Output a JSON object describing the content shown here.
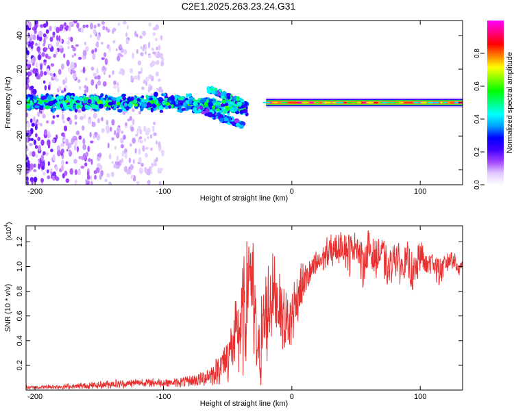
{
  "title": "C2E1.2025.263.23.24.G31",
  "chart_data": [
    {
      "type": "heatmap",
      "title": "C2E1.2025.263.23.24.G31",
      "xlabel": "Height of straight line (km)",
      "ylabel": "Frequency (Hz)",
      "xlim": [
        -207,
        133
      ],
      "ylim": [
        -49,
        49
      ],
      "xticks": [
        -200,
        -100,
        0,
        100
      ],
      "yticks": [
        -40,
        -20,
        0,
        20,
        40
      ],
      "colorbar": {
        "label": "Normalized spectral amplitude",
        "range": [
          0,
          1
        ],
        "ticks": [
          0.0,
          0.2,
          0.4,
          0.6,
          0.8
        ],
        "colors": [
          "#ffffff",
          "#e0c8ff",
          "#a040ff",
          "#4000ff",
          "#0000ff",
          "#00a0ff",
          "#00ffff",
          "#00ff80",
          "#00ff00",
          "#80ff00",
          "#ffff00",
          "#ff8000",
          "#ff0000",
          "#ff0080",
          "#ff00ff"
        ]
      },
      "features": [
        {
          "name": "scattered noise",
          "x_range": [
            -207,
            -100
          ],
          "frequency_range": [
            -49,
            49
          ],
          "amplitude": 0.15
        },
        {
          "name": "broad band",
          "x_range": [
            -207,
            -35
          ],
          "frequency_center": 0,
          "frequency_halfwidth": 6,
          "amplitude": 0.45
        },
        {
          "name": "upper branch",
          "x_range": [
            -65,
            -38
          ],
          "frequency_start": 8,
          "frequency_end": 0,
          "amplitude": 0.4
        },
        {
          "name": "lower branch",
          "x_range": [
            -72,
            -37
          ],
          "frequency_start": -4,
          "frequency_end": -14,
          "amplitude": 0.3
        },
        {
          "name": "narrow line",
          "x_range": [
            -20,
            133
          ],
          "frequency_center": 0,
          "frequency_halfwidth": 1.2,
          "amplitude": 1.0
        }
      ]
    },
    {
      "type": "line",
      "xlabel": "Height of straight line (km)",
      "ylabel": "SNR (10 * v/v)",
      "yscale_label": "(x10",
      "yscale_exponent": "4",
      "yscale_suffix": ")",
      "xlim": [
        -207,
        133
      ],
      "ylim": [
        0,
        1.33
      ],
      "xticks": [
        -200,
        -100,
        0,
        100
      ],
      "yticks": [
        0.2,
        0.4,
        0.6,
        0.8,
        1.0,
        1.2
      ],
      "line_color": "#e83030",
      "series": [
        {
          "name": "SNR",
          "x": [
            -207,
            -190,
            -170,
            -150,
            -140,
            -130,
            -120,
            -110,
            -100,
            -90,
            -80,
            -70,
            -60,
            -55,
            -50,
            -45,
            -40,
            -35,
            -33,
            -31,
            -29,
            -27,
            -25,
            -23,
            -20,
            -17,
            -14,
            -11,
            -8,
            -5,
            -2,
            0,
            3,
            6,
            10,
            15,
            20,
            25,
            30,
            35,
            40,
            45,
            50,
            55,
            60,
            65,
            70,
            75,
            80,
            85,
            90,
            95,
            100,
            105,
            110,
            115,
            120,
            125,
            130,
            133
          ],
          "y": [
            0.02,
            0.025,
            0.03,
            0.04,
            0.05,
            0.05,
            0.06,
            0.06,
            0.06,
            0.06,
            0.07,
            0.09,
            0.14,
            0.2,
            0.28,
            0.38,
            0.5,
            0.7,
            1.1,
            0.75,
            0.55,
            0.35,
            0.3,
            0.45,
            0.6,
            0.72,
            0.8,
            0.72,
            0.62,
            0.55,
            0.52,
            0.6,
            0.72,
            0.8,
            0.88,
            0.95,
            1.02,
            1.08,
            1.12,
            1.15,
            1.18,
            1.1,
            1.2,
            1.0,
            1.15,
            1.05,
            1.12,
            0.95,
            1.1,
            1.0,
            1.05,
            0.9,
            1.1,
            1.0,
            1.05,
            0.95,
            1.02,
            1.08,
            0.98,
            1.02
          ],
          "amplitude": [
            0.01,
            0.015,
            0.02,
            0.025,
            0.03,
            0.03,
            0.03,
            0.03,
            0.03,
            0.03,
            0.04,
            0.05,
            0.08,
            0.12,
            0.18,
            0.25,
            0.35,
            0.45,
            0.2,
            0.5,
            0.45,
            0.3,
            0.25,
            0.35,
            0.35,
            0.3,
            0.25,
            0.25,
            0.25,
            0.25,
            0.25,
            0.2,
            0.2,
            0.18,
            0.12,
            0.12,
            0.1,
            0.1,
            0.12,
            0.12,
            0.12,
            0.15,
            0.1,
            0.15,
            0.15,
            0.12,
            0.15,
            0.12,
            0.15,
            0.12,
            0.12,
            0.15,
            0.12,
            0.1,
            0.1,
            0.1,
            0.08,
            0.08,
            0.06,
            0.05
          ]
        }
      ]
    }
  ]
}
